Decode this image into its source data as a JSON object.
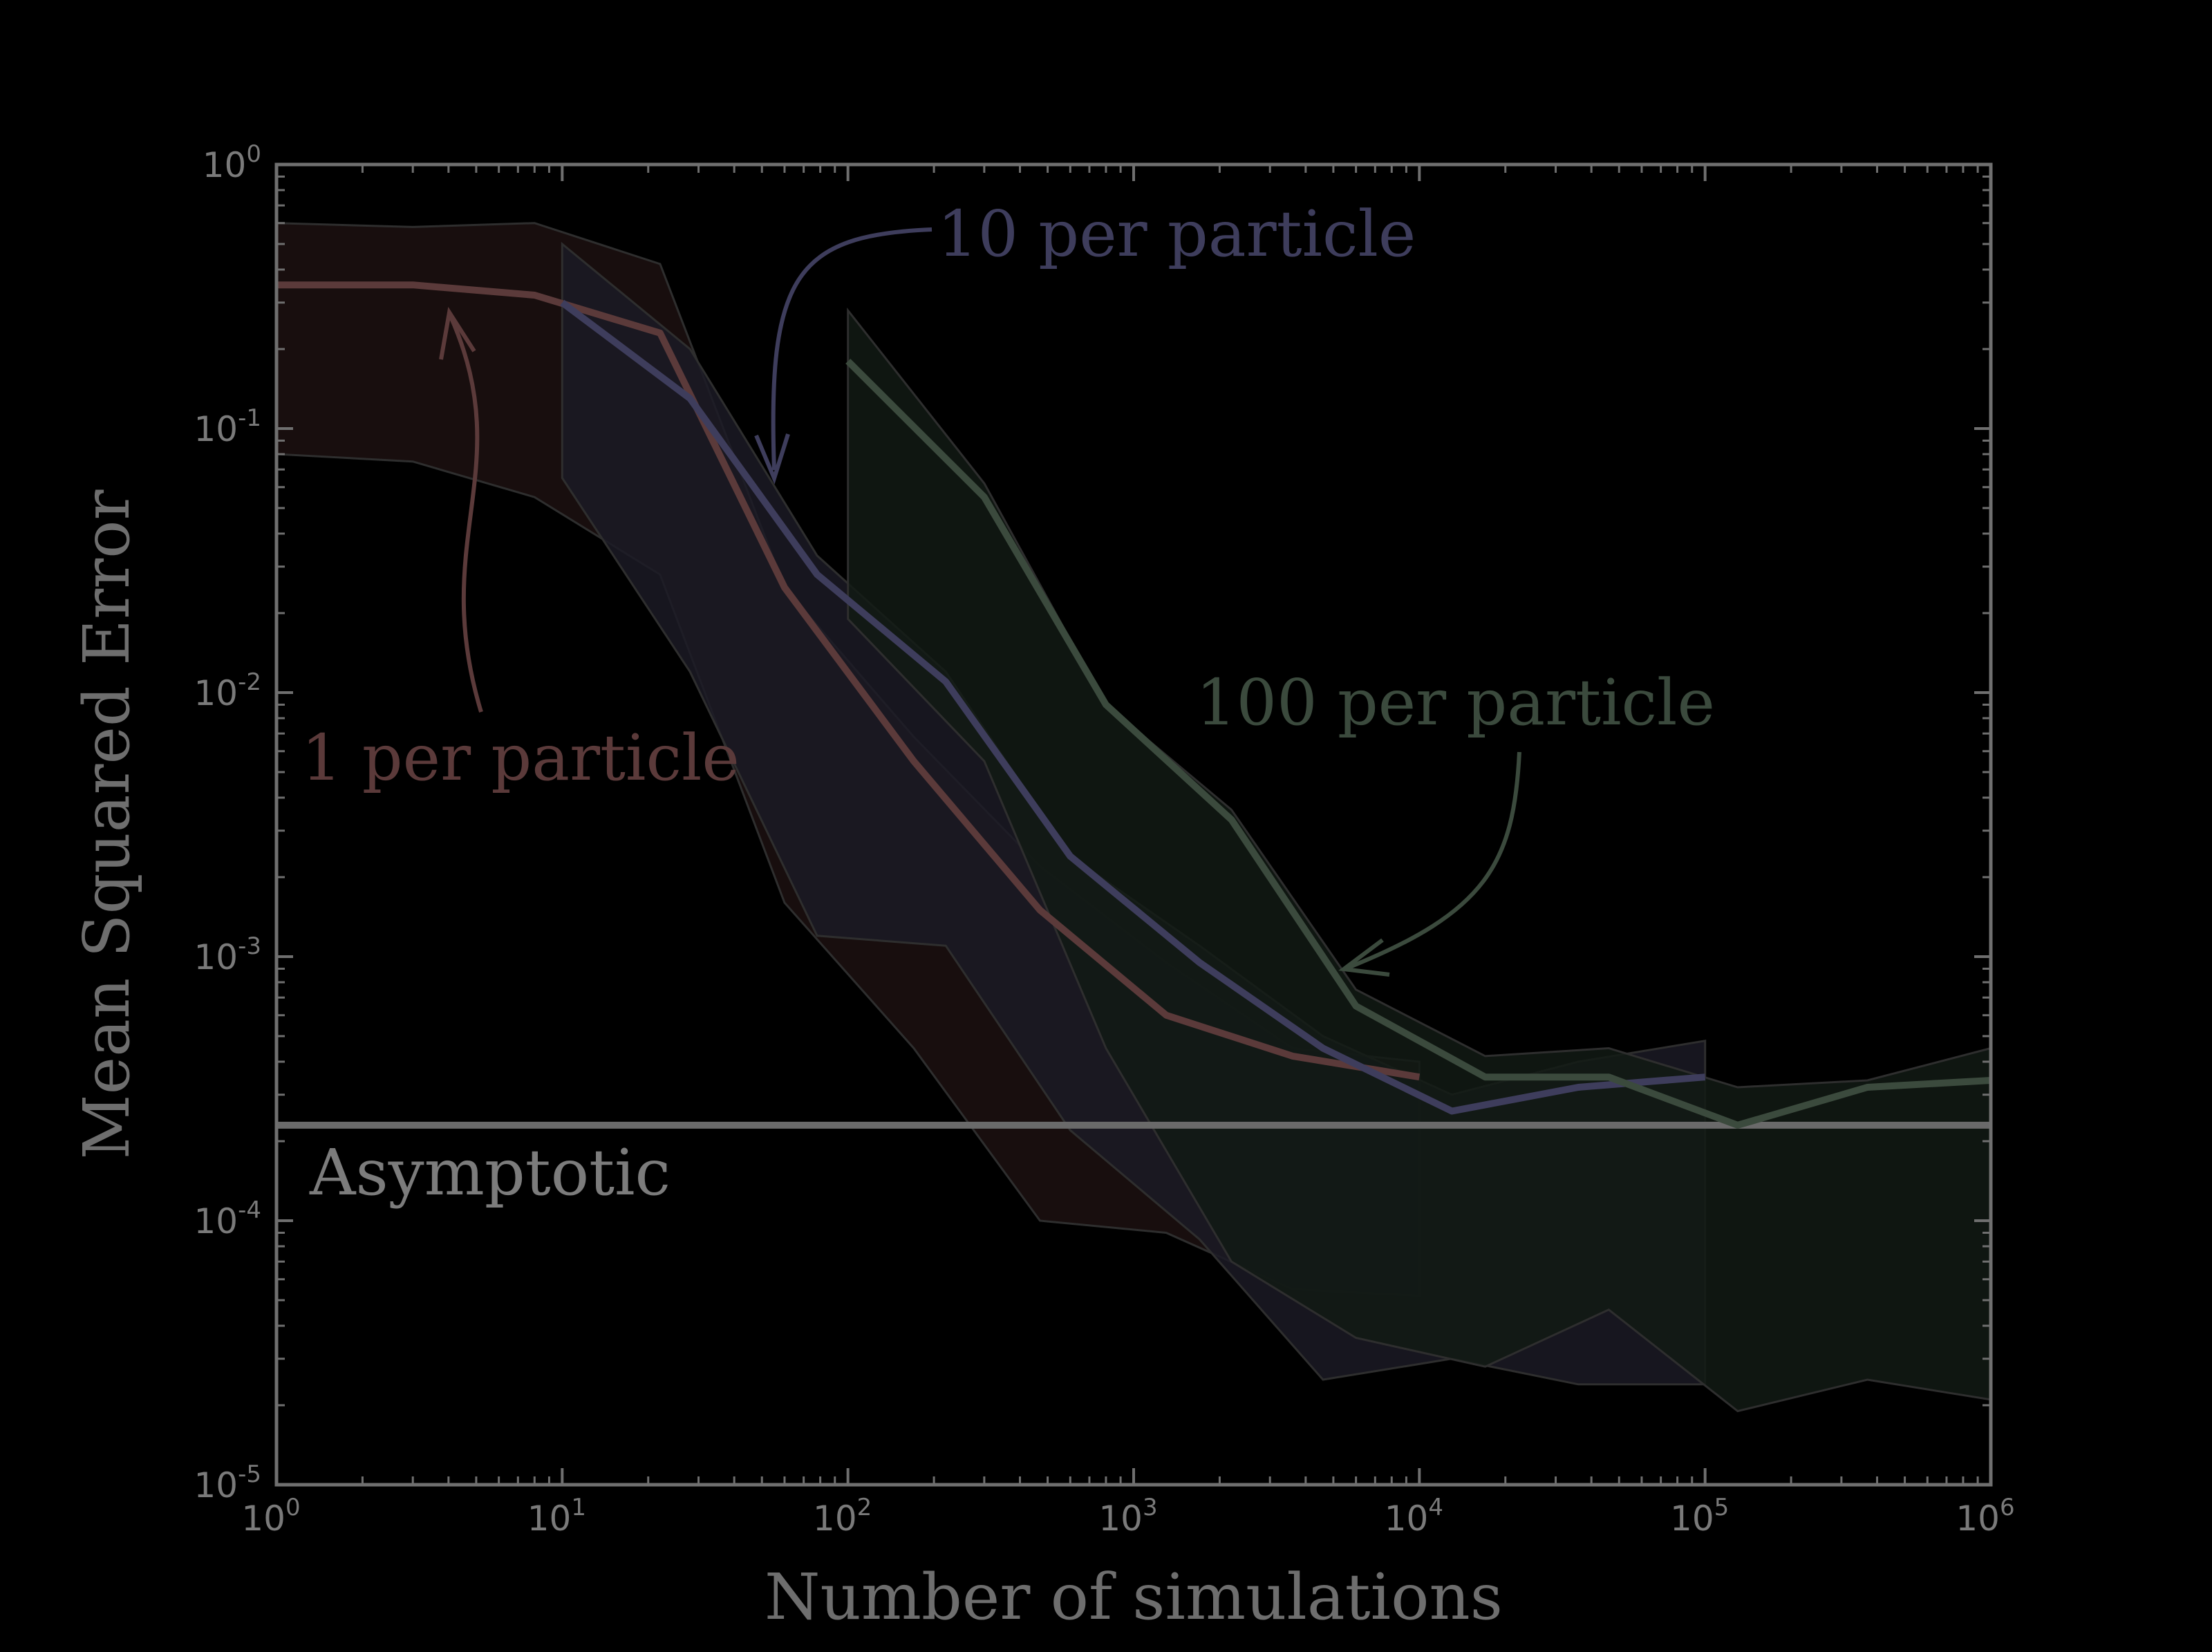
{
  "chart_data": {
    "type": "line",
    "xscale": "log",
    "yscale": "log",
    "xlim": [
      1,
      1000000
    ],
    "ylim": [
      1e-05,
      1
    ],
    "xlabel": "Number of simulations",
    "ylabel": "Mean Squared Error",
    "xticks": [
      {
        "value": 1,
        "base": "10",
        "exp": "0"
      },
      {
        "value": 10,
        "base": "10",
        "exp": "1"
      },
      {
        "value": 100,
        "base": "10",
        "exp": "2"
      },
      {
        "value": 1000,
        "base": "10",
        "exp": "3"
      },
      {
        "value": 10000,
        "base": "10",
        "exp": "4"
      },
      {
        "value": 100000,
        "base": "10",
        "exp": "5"
      },
      {
        "value": 1000000,
        "base": "10",
        "exp": "6"
      }
    ],
    "yticks": [
      {
        "value": 1,
        "base": "10",
        "exp": "0"
      },
      {
        "value": 0.1,
        "base": "10",
        "exp": "-1"
      },
      {
        "value": 0.01,
        "base": "10",
        "exp": "-2"
      },
      {
        "value": 0.001,
        "base": "10",
        "exp": "-3"
      },
      {
        "value": 0.0001,
        "base": "10",
        "exp": "-4"
      },
      {
        "value": 1e-05,
        "base": "10",
        "exp": "-5"
      }
    ],
    "reference_line": {
      "label": "Asymptotic",
      "y": 0.00023,
      "color": "#6a6a6a"
    },
    "series": [
      {
        "name": "1 per particle",
        "color": "#5b3a3a",
        "fill": "#1c1111",
        "x": [
          1,
          3,
          8,
          22,
          60,
          170,
          470,
          1300,
          3600,
          10000
        ],
        "y": [
          0.35,
          0.35,
          0.32,
          0.23,
          0.025,
          0.0055,
          0.0015,
          0.0006,
          0.00042,
          0.00035
        ],
        "upper": [
          0.6,
          0.58,
          0.6,
          0.42,
          0.025,
          0.0068,
          0.0022,
          0.00095,
          0.00045,
          0.0004
        ],
        "lower": [
          0.08,
          0.075,
          0.055,
          0.028,
          0.0016,
          0.00045,
          0.0001,
          9e-05,
          5.5e-05,
          5.2e-05
        ]
      },
      {
        "name": "10 per particle",
        "color": "#3e3d5c",
        "fill": "#1b1a25",
        "x": [
          10,
          28,
          78,
          220,
          600,
          1700,
          4600,
          13000,
          36000,
          100000
        ],
        "y": [
          0.3,
          0.13,
          0.028,
          0.011,
          0.0024,
          0.00095,
          0.00045,
          0.00026,
          0.00032,
          0.00035
        ],
        "upper": [
          0.5,
          0.2,
          0.033,
          0.012,
          0.0024,
          0.0011,
          0.0005,
          0.0003,
          0.0004,
          0.00048
        ],
        "lower": [
          0.065,
          0.012,
          0.0012,
          0.0011,
          0.00022,
          8.5e-05,
          2.5e-05,
          3e-05,
          2.4e-05,
          2.4e-05
        ]
      },
      {
        "name": "100 per particle",
        "color": "#3b4a3d",
        "fill": "#121a14",
        "x": [
          100,
          300,
          800,
          2200,
          6000,
          17000,
          46000,
          130000,
          370000,
          1000000
        ],
        "y": [
          0.18,
          0.055,
          0.009,
          0.0033,
          0.00065,
          0.00035,
          0.00035,
          0.00023,
          0.00032,
          0.00034
        ],
        "upper": [
          0.28,
          0.062,
          0.009,
          0.0036,
          0.00075,
          0.00042,
          0.00045,
          0.00032,
          0.00034,
          0.00045
        ],
        "lower": [
          0.019,
          0.0055,
          0.00045,
          7e-05,
          3.6e-05,
          2.8e-05,
          4.6e-05,
          1.9e-05,
          2.5e-05,
          2.1e-05
        ]
      }
    ],
    "annotations": [
      {
        "text": "10 per particle",
        "series": 1
      },
      {
        "text": "100 per particle",
        "series": 2
      },
      {
        "text": "1 per particle",
        "series": 0
      }
    ]
  }
}
